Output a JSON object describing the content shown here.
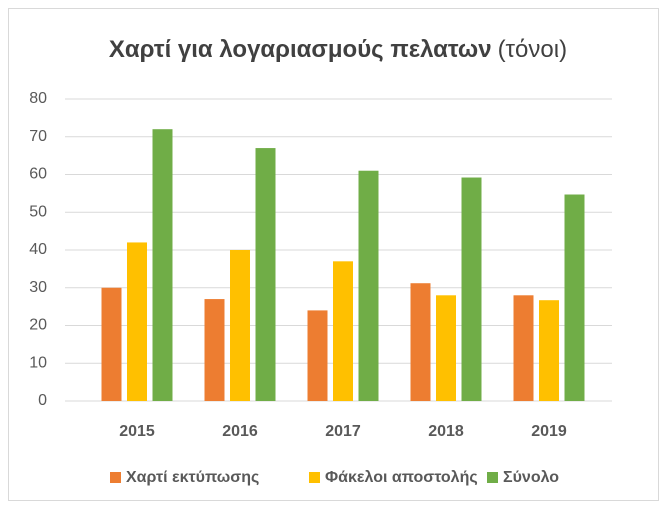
{
  "chart_data": {
    "type": "bar",
    "title": "Χαρτί για λογαριασμούς πελατων",
    "title_unit": "(τόνοι)",
    "categories": [
      "2015",
      "2016",
      "2017",
      "2018",
      "2019"
    ],
    "series": [
      {
        "name": "Χαρτί εκτύπωσης",
        "color": "#ed7d31",
        "values": [
          30,
          27,
          24,
          31.2,
          28
        ]
      },
      {
        "name": "Φάκελοι αποστολής",
        "color": "#ffc000",
        "values": [
          42,
          40,
          37,
          28,
          26.7
        ]
      },
      {
        "name": "Σύνολο",
        "color": "#70ad47",
        "values": [
          72,
          67,
          61,
          59.2,
          54.7
        ]
      }
    ],
    "ylim": [
      0,
      80
    ],
    "yticks": [
      0,
      10,
      20,
      30,
      40,
      50,
      60,
      70,
      80
    ],
    "grid": true,
    "legend": "bottom"
  }
}
